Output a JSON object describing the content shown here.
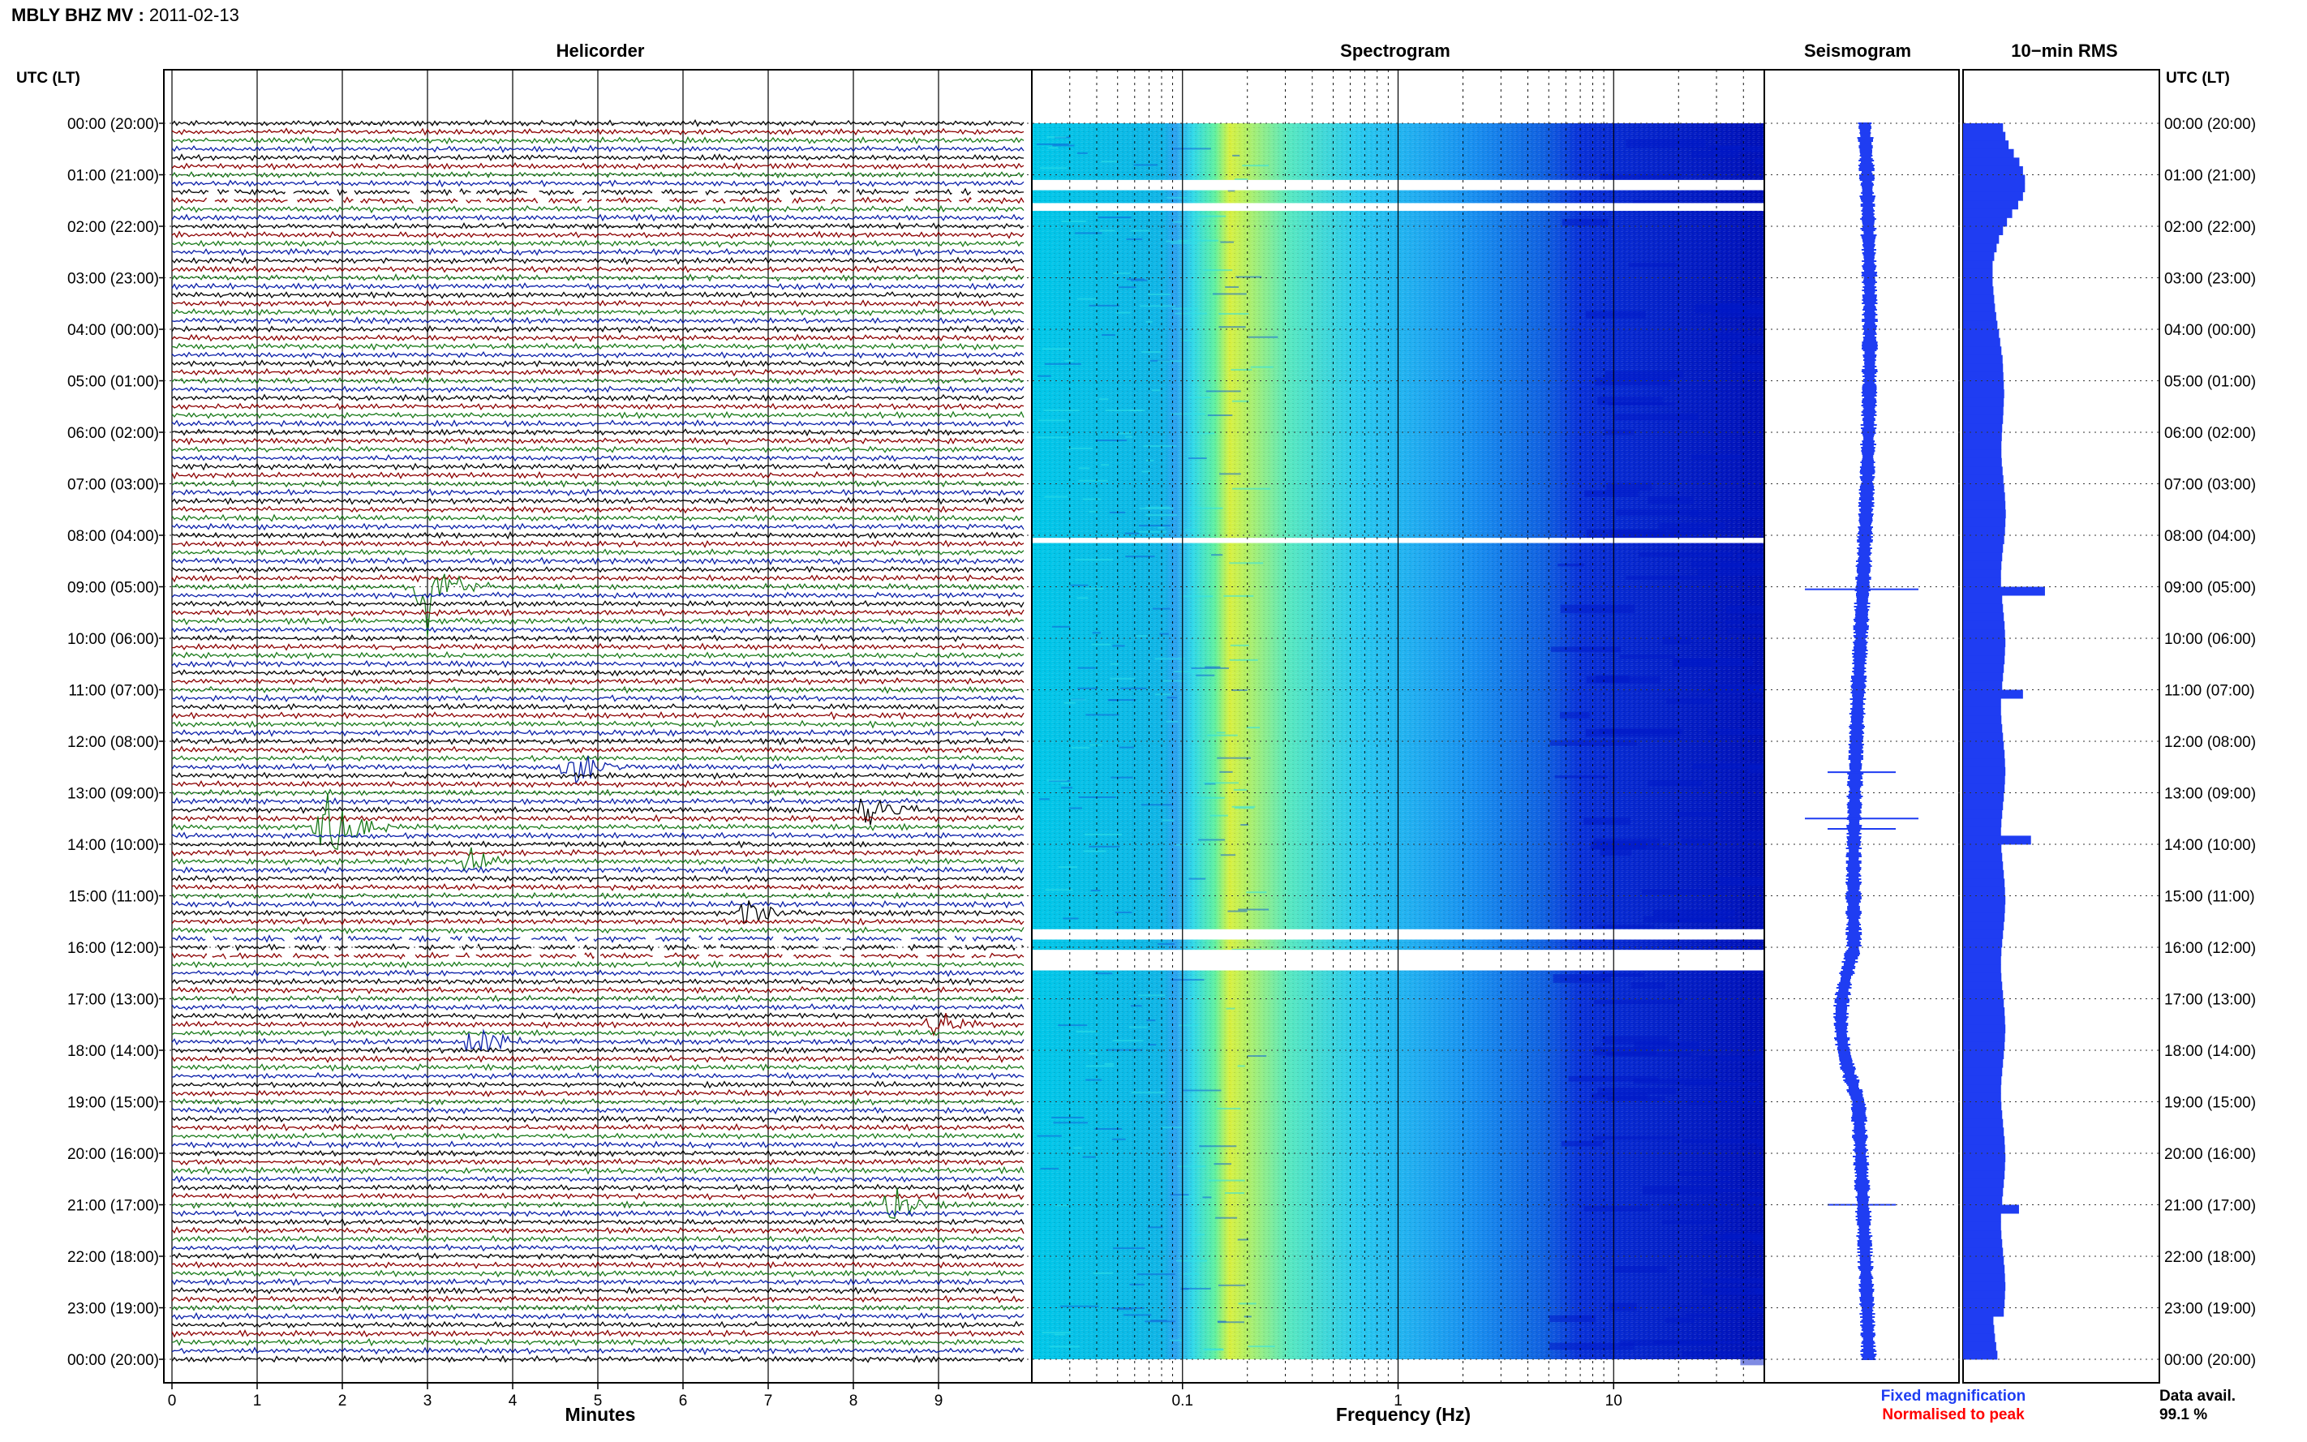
{
  "header": {
    "station": "MBLY BHZ MV",
    "separator": " : ",
    "date": "2011-02-13"
  },
  "panels": {
    "helicorder": "Helicorder",
    "spectrogram": "Spectrogram",
    "seismogram": "Seismogram",
    "rms": "10−min RMS"
  },
  "axes": {
    "time_header_left": "UTC (LT)",
    "time_header_right": "UTC (LT)",
    "helicorder_xlabel": "Minutes",
    "spectrogram_xlabel": "Frequency (Hz)"
  },
  "legend": {
    "fixed": "Fixed magnification",
    "fixed_color": "#1f3df2",
    "normalised": "Normalised to peak",
    "normalised_color": "#ff0000"
  },
  "data_availability": {
    "label": "Data avail.",
    "value": "99.1 %"
  },
  "colors": {
    "trace_cycle": [
      "#000000",
      "#8b0000",
      "#1a7a1a",
      "#0a1fa8"
    ],
    "seismogram": "#1f3df2",
    "rms_fill": "#1f3df2"
  },
  "chart_data": [
    {
      "type": "line",
      "name": "helicorder",
      "title": "Helicorder",
      "xlabel": "Minutes",
      "x_ticks": [
        0,
        1,
        2,
        3,
        4,
        5,
        6,
        7,
        8,
        9
      ],
      "xlim": [
        0,
        10
      ],
      "y_tick_labels": [
        "00:00 (20:00)",
        "01:00 (21:00)",
        "02:00 (22:00)",
        "03:00 (23:00)",
        "04:00 (00:00)",
        "05:00 (01:00)",
        "06:00 (02:00)",
        "07:00 (03:00)",
        "08:00 (04:00)",
        "09:00 (05:00)",
        "10:00 (06:00)",
        "11:00 (07:00)",
        "12:00 (08:00)",
        "13:00 (09:00)",
        "14:00 (10:00)",
        "15:00 (11:00)",
        "16:00 (12:00)",
        "17:00 (13:00)",
        "18:00 (14:00)",
        "19:00 (15:00)",
        "20:00 (16:00)",
        "21:00 (17:00)",
        "22:00 (18:00)",
        "23:00 (19:00)",
        "00:00 (20:00)"
      ],
      "rows_per_hour": 6,
      "events": [
        {
          "hour": 9.0,
          "minute": 3.0,
          "amplitude": 4.0
        },
        {
          "hour": 12.5,
          "minute": 4.7,
          "amplitude": 2.0
        },
        {
          "hour": 13.33,
          "minute": 8.2,
          "amplitude": 1.6
        },
        {
          "hour": 13.67,
          "minute": 1.8,
          "amplitude": 3.4
        },
        {
          "hour": 14.33,
          "minute": 3.5,
          "amplitude": 1.3
        },
        {
          "hour": 15.33,
          "minute": 6.8,
          "amplitude": 1.2
        },
        {
          "hour": 17.5,
          "minute": 9.0,
          "amplitude": 1.2
        },
        {
          "hour": 17.83,
          "minute": 3.6,
          "amplitude": 1.2
        },
        {
          "hour": 21.0,
          "minute": 8.5,
          "amplitude": 1.8
        }
      ],
      "gaps": [
        {
          "from_hour": 1.17,
          "to_hour": 1.5
        },
        {
          "from_hour": 15.67,
          "to_hour": 16.33
        }
      ]
    },
    {
      "type": "heatmap",
      "name": "spectrogram",
      "title": "Spectrogram",
      "xlabel": "Frequency (Hz)",
      "x_scale": "log",
      "xlim": [
        0.02,
        50
      ],
      "x_ticks": [
        0.1,
        1,
        10
      ],
      "x_tick_labels": [
        "0.1",
        "1",
        "10"
      ],
      "ylim_hours": [
        0,
        24
      ],
      "colormap": "jet",
      "peak_band_hz": [
        0.18,
        0.3
      ],
      "gaps_hours": [
        [
          1.1,
          1.3
        ],
        [
          1.55,
          1.7
        ],
        [
          8.05,
          8.15
        ],
        [
          15.65,
          15.85
        ],
        [
          16.05,
          16.45
        ]
      ]
    },
    {
      "type": "line",
      "name": "seismogram",
      "title": "Seismogram",
      "ylim_hours": [
        0,
        24
      ],
      "spikes": [
        {
          "hour": 9.05,
          "amplitude": 1.0
        },
        {
          "hour": 12.6,
          "amplitude": 0.6
        },
        {
          "hour": 13.5,
          "amplitude": 1.0
        },
        {
          "hour": 13.7,
          "amplitude": 0.6
        },
        {
          "hour": 21.0,
          "amplitude": 0.6
        }
      ]
    },
    {
      "type": "bar",
      "name": "rms",
      "title": "10−min RMS",
      "orientation": "horizontal",
      "ylim_hours": [
        0,
        24
      ],
      "interval_minutes": 10,
      "values": [
        1.0,
        1.06,
        1.14,
        1.27,
        1.41,
        1.5,
        1.55,
        1.55,
        1.5,
        1.38,
        1.23,
        1.1,
        1.0,
        0.9,
        0.84,
        0.78,
        0.74,
        0.74,
        0.74,
        0.76,
        0.78,
        0.8,
        0.83,
        0.86,
        0.9,
        0.93,
        0.96,
        0.99,
        1.0,
        1.01,
        1.02,
        1.03,
        1.02,
        1.01,
        1.0,
        0.98,
        0.97,
        0.96,
        0.96,
        0.97,
        0.99,
        1.01,
        1.03,
        1.05,
        1.06,
        1.07,
        1.06,
        1.05,
        1.03,
        1.0,
        0.98,
        0.96,
        0.95,
        0.95,
        0.96,
        0.98,
        1.0,
        1.02,
        1.04,
        1.05,
        1.06,
        1.05,
        1.04,
        1.02,
        1.0,
        0.98,
        0.96,
        0.95,
        0.95,
        0.96,
        0.98,
        1.0,
        1.02,
        1.04,
        1.05,
        1.06,
        1.05,
        1.04,
        1.02,
        1.0,
        0.98,
        0.96,
        0.95,
        0.95,
        0.96,
        0.98,
        1.0,
        1.02,
        1.04,
        1.05,
        1.06,
        1.05,
        1.04,
        1.02,
        1.0,
        0.98,
        0.96,
        0.95,
        0.95,
        0.96,
        0.98,
        1.0,
        1.02,
        1.04,
        1.05,
        1.06,
        1.05,
        1.04,
        1.02,
        1.0,
        0.98,
        0.96,
        0.95,
        0.95,
        0.96,
        0.98,
        1.0,
        1.02,
        1.04,
        1.05,
        1.06,
        1.05,
        1.04,
        1.02,
        1.0,
        0.98,
        0.96,
        0.95,
        0.95,
        0.96,
        0.98,
        1.0,
        1.02,
        1.04,
        1.05,
        1.06,
        1.05,
        1.04,
        1.02
      ],
      "notable": [
        {
          "hour": 9.0,
          "value": 2.05
        },
        {
          "hour": 11.0,
          "value": 1.5
        },
        {
          "hour": 13.83,
          "value": 1.7
        },
        {
          "hour": 21.0,
          "value": 1.4
        }
      ]
    }
  ]
}
